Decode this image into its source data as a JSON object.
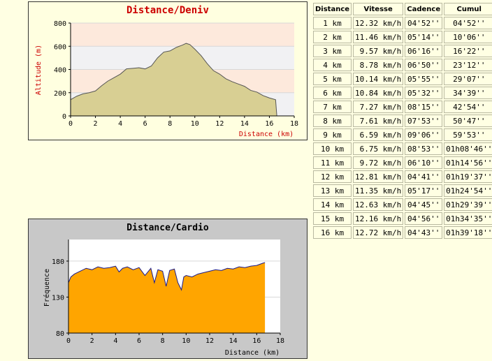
{
  "elevation_chart": {
    "title": "Distance/Deniv",
    "colors": {
      "title": "#cc0000",
      "fill": "#d8cf93",
      "line": "#555555",
      "band_a": "#fde9dc",
      "band_b": "#f1f1f3",
      "plot_bg": "#fff5ee"
    },
    "chart_data": {
      "type": "area",
      "title": "Distance/Deniv",
      "xlabel": "Distance (km)",
      "ylabel": "Altitude (m)",
      "xlim": [
        0,
        18
      ],
      "ylim": [
        0,
        800
      ],
      "xticks": [
        "0",
        "2",
        "4",
        "6",
        "8",
        "10",
        "12",
        "14",
        "16",
        "18"
      ],
      "yticks": [
        "0",
        "200",
        "400",
        "600",
        "800"
      ],
      "x": [
        0,
        0.5,
        1,
        1.5,
        2,
        2.5,
        3,
        3.5,
        4,
        4.5,
        5,
        5.5,
        6,
        6.5,
        7,
        7.5,
        8,
        8.5,
        9,
        9.3,
        9.6,
        10,
        10.5,
        11,
        11.5,
        12,
        12.5,
        13,
        13.5,
        14,
        14.5,
        15,
        15.5,
        16,
        16.5,
        16.6
      ],
      "y": [
        140,
        170,
        190,
        200,
        215,
        260,
        300,
        330,
        360,
        405,
        410,
        415,
        405,
        430,
        500,
        550,
        560,
        590,
        610,
        625,
        615,
        575,
        520,
        450,
        390,
        360,
        320,
        295,
        275,
        255,
        220,
        205,
        175,
        155,
        140,
        0
      ]
    }
  },
  "cardio_chart": {
    "title": "Distance/Cardio",
    "colors": {
      "title": "#000000",
      "fill": "#ffa500",
      "line": "#1a1a8c",
      "plot_bg": "#ffffff",
      "panel_bg": "#c8c8c8"
    },
    "chart_data": {
      "type": "area",
      "title": "Distance/Cardio",
      "xlabel": "Distance (km)",
      "ylabel": "Fréquence",
      "xlim": [
        0,
        18
      ],
      "ylim": [
        80,
        210
      ],
      "xticks": [
        "0",
        "2",
        "4",
        "6",
        "8",
        "10",
        "12",
        "14",
        "16",
        "18"
      ],
      "yticks": [
        "80",
        "130",
        "180"
      ],
      "x": [
        0,
        0.2,
        0.5,
        1,
        1.5,
        2,
        2.5,
        3,
        3.5,
        4,
        4.3,
        4.6,
        5,
        5.5,
        6,
        6.5,
        7,
        7.3,
        7.6,
        8,
        8.3,
        8.6,
        9,
        9.3,
        9.6,
        9.8,
        10,
        10.5,
        11,
        11.5,
        12,
        12.5,
        13,
        13.5,
        14,
        14.5,
        15,
        15.5,
        16,
        16.5,
        16.7
      ],
      "y": [
        150,
        158,
        162,
        166,
        170,
        168,
        172,
        170,
        171,
        173,
        165,
        170,
        172,
        168,
        171,
        160,
        170,
        150,
        168,
        166,
        145,
        167,
        169,
        150,
        140,
        158,
        160,
        158,
        162,
        164,
        166,
        168,
        167,
        170,
        169,
        172,
        171,
        173,
        174,
        177,
        178
      ]
    }
  },
  "splits_table": {
    "columns": [
      "Distance",
      "Vitesse",
      "Cadence",
      "Cumul"
    ],
    "rows": [
      [
        "1 km",
        "12.32 km/h",
        "04'52''",
        "04'52''"
      ],
      [
        "2 km",
        "11.46 km/h",
        "05'14''",
        "10'06''"
      ],
      [
        "3 km",
        "9.57 km/h",
        "06'16''",
        "16'22''"
      ],
      [
        "4 km",
        "8.78 km/h",
        "06'50''",
        "23'12''"
      ],
      [
        "5 km",
        "10.14 km/h",
        "05'55''",
        "29'07''"
      ],
      [
        "6 km",
        "10.84 km/h",
        "05'32''",
        "34'39''"
      ],
      [
        "7 km",
        "7.27 km/h",
        "08'15''",
        "42'54''"
      ],
      [
        "8 km",
        "7.61 km/h",
        "07'53''",
        "50'47''"
      ],
      [
        "9 km",
        "6.59 km/h",
        "09'06''",
        "59'53''"
      ],
      [
        "10 km",
        "6.75 km/h",
        "08'53''",
        "01h08'46''"
      ],
      [
        "11 km",
        "9.72 km/h",
        "06'10''",
        "01h14'56''"
      ],
      [
        "12 km",
        "12.81 km/h",
        "04'41''",
        "01h19'37''"
      ],
      [
        "13 km",
        "11.35 km/h",
        "05'17''",
        "01h24'54''"
      ],
      [
        "14 km",
        "12.63 km/h",
        "04'45''",
        "01h29'39''"
      ],
      [
        "15 km",
        "12.16 km/h",
        "04'56''",
        "01h34'35''"
      ],
      [
        "16 km",
        "12.72 km/h",
        "04'43''",
        "01h39'18''"
      ]
    ]
  }
}
